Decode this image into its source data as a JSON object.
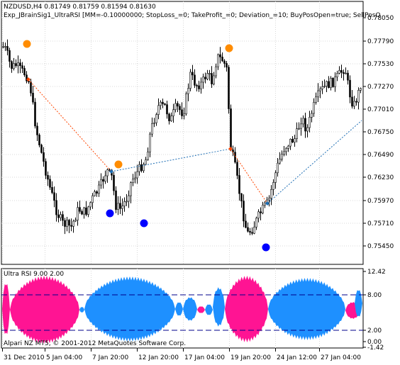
{
  "main": {
    "symbol_line": "NZDUSD,H4  0.81749 0.81759 0.81594 0.81630",
    "ea_line": "Exp_JBrainSig1_UltraRSI [MM=-0.10000000; StopLoss_=0; TakeProfit_=0; Deviation_=10; BuyPosOpen=true; SellPosO",
    "y_ticks": [
      "0.78050",
      "0.77790",
      "0.77530",
      "0.77270",
      "0.77010",
      "0.76750",
      "0.76490",
      "0.76230",
      "0.75970",
      "0.75710",
      "0.75450"
    ]
  },
  "indicator": {
    "title": "Ultra RSI 9.00 2.00",
    "y_ticks": [
      "12.42",
      "8.00",
      "2.00",
      "0.00",
      "-1.42"
    ],
    "bull_color": "#1e90ff",
    "bear_color": "#ff1493"
  },
  "x_axis": {
    "labels": [
      "31 Dec 2010",
      "5 Jan 04:00",
      "7 Jan 20:00",
      "12 Jan 20:00",
      "17 Jan 04:00",
      "19 Jan 20:00",
      "24 Jan 12:00",
      "27 Jan 04:00"
    ]
  },
  "footer": {
    "copyright": "Alpari NZ MT5, © 2001-2012 MetaQuotes Software Corp."
  },
  "signals": {
    "sell_color": "#ff8c00",
    "buy_color": "#0000ff",
    "sell_trade_color": "#ff4500",
    "buy_trade_color": "#1e6eb4"
  }
}
